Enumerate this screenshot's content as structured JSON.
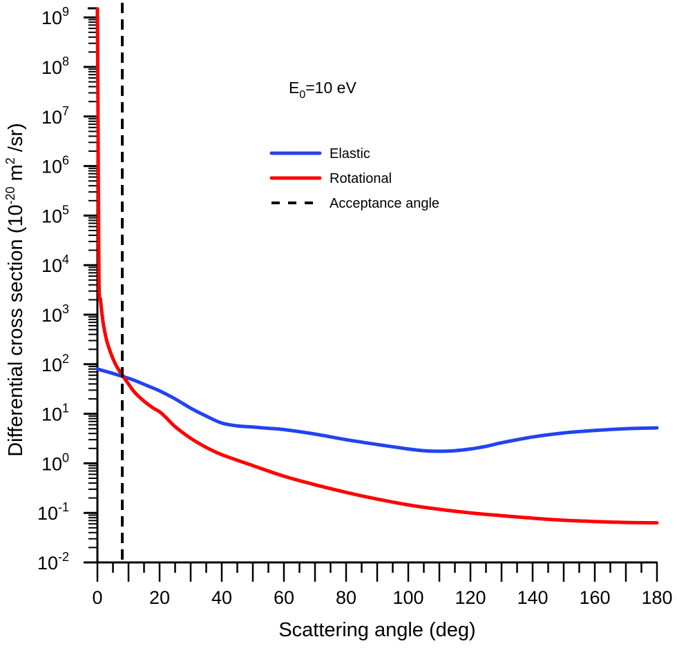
{
  "chart_data": {
    "type": "line",
    "title": "",
    "annotation": {
      "main": "E",
      "sub": "0",
      "rest": "=10 eV"
    },
    "xlabel": "Scattering angle (deg)",
    "ylabel": {
      "main": "Differential cross section (10",
      "exp": "-20",
      "mid": " m",
      "exp2": "2",
      "tail": " /sr)"
    },
    "xlim": [
      0,
      180
    ],
    "ylim_log10": [
      -2,
      9.3
    ],
    "yscale": "log",
    "x_ticks": [
      0,
      20,
      40,
      60,
      80,
      100,
      120,
      140,
      160,
      180
    ],
    "x_tick_labels": [
      "0",
      "20",
      "40",
      "60",
      "80",
      "100",
      "120",
      "140",
      "160",
      "180"
    ],
    "y_ticks": [
      {
        "base": "10",
        "exp": "9",
        "value": 9
      },
      {
        "base": "10",
        "exp": "8",
        "value": 8
      },
      {
        "base": "10",
        "exp": "7",
        "value": 7
      },
      {
        "base": "10",
        "exp": "6",
        "value": 6
      },
      {
        "base": "10",
        "exp": "5",
        "value": 5
      },
      {
        "base": "10",
        "exp": "4",
        "value": 4
      },
      {
        "base": "10",
        "exp": "3",
        "value": 3
      },
      {
        "base": "10",
        "exp": "2",
        "value": 2
      },
      {
        "base": "10",
        "exp": "1",
        "value": 1
      },
      {
        "base": "10",
        "exp": "0",
        "value": 0
      },
      {
        "base": "10",
        "exp": "-1",
        "value": -1
      },
      {
        "base": "10",
        "exp": "-2",
        "value": -2
      }
    ],
    "legend": {
      "position": "upper-center",
      "entries": [
        {
          "label": "Elastic",
          "color": "#2244ee",
          "style": "solid"
        },
        {
          "label": "Rotational",
          "color": "#ff0000",
          "style": "solid"
        },
        {
          "label": "Acceptance angle",
          "color": "#000000",
          "style": "dashed"
        }
      ]
    },
    "series": [
      {
        "name": "Elastic",
        "color": "#2244ee",
        "x": [
          0,
          4,
          8,
          12,
          16,
          20,
          25,
          30,
          35,
          40,
          45,
          50,
          55,
          60,
          70,
          80,
          90,
          100,
          105,
          110,
          115,
          120,
          125,
          130,
          140,
          150,
          160,
          170,
          180
        ],
        "y": [
          80,
          68,
          57,
          47,
          37,
          29,
          20,
          13,
          9,
          6.5,
          5.7,
          5.4,
          5.1,
          4.8,
          3.9,
          3.0,
          2.4,
          1.95,
          1.8,
          1.75,
          1.8,
          1.95,
          2.2,
          2.6,
          3.4,
          4.1,
          4.6,
          5.0,
          5.2
        ]
      },
      {
        "name": "Rotational",
        "color": "#ff0000",
        "x": [
          0,
          0.2,
          0.5,
          1,
          1.5,
          2,
          3,
          4,
          5,
          6,
          7,
          8,
          10,
          12,
          15,
          18,
          20,
          22,
          25,
          30,
          35,
          40,
          50,
          60,
          70,
          80,
          90,
          100,
          110,
          120,
          130,
          140,
          150,
          160,
          170,
          180
        ],
        "y": [
          1500000000.0,
          10000000.0,
          5000,
          2000,
          1000,
          600,
          300,
          190,
          130,
          95,
          75,
          60,
          40,
          27,
          18,
          13,
          11,
          8.5,
          5.5,
          3.2,
          2.1,
          1.5,
          0.9,
          0.55,
          0.37,
          0.26,
          0.19,
          0.145,
          0.118,
          0.1,
          0.088,
          0.078,
          0.071,
          0.067,
          0.064,
          0.063
        ]
      }
    ],
    "acceptance_angle_deg": 8
  }
}
